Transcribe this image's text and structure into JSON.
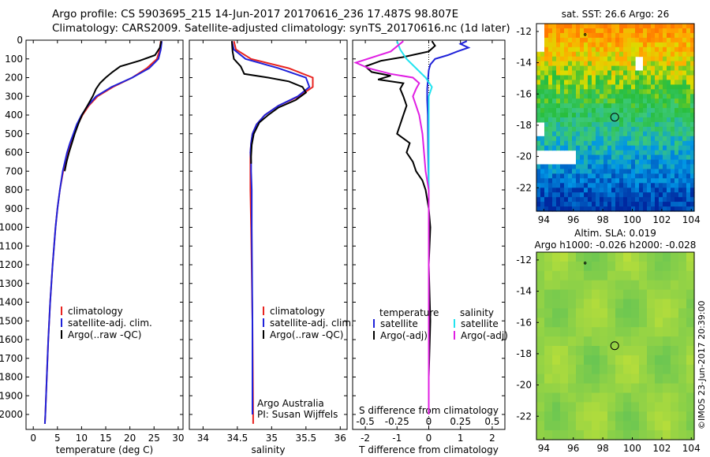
{
  "header": {
    "line1": "Argo profile: CS 5903695_215 14-Jun-2017 20170616_236 17.487S 98.807E",
    "line2": "Climatology: CARS2009. Satellite-adjusted climatology: synTS_20170616.nc (1d later)"
  },
  "side_stamp": "©IMOS 23-Jun-2017 20:39:00",
  "colors": {
    "climatology": "#e8231f",
    "satellite": "#1f22d9",
    "argo": "#000000",
    "sat_s": "#22e3ef",
    "argo_s": "#e01fe3"
  },
  "chart_data": [
    {
      "type": "line",
      "xlabel": "temperature (deg C)",
      "ylabel": "",
      "xlim": [
        -1.5,
        31
      ],
      "ylim": [
        2080,
        0
      ],
      "xticks": [
        0,
        5,
        10,
        15,
        20,
        25,
        30
      ],
      "yticks": [
        0,
        100,
        200,
        300,
        400,
        500,
        600,
        700,
        800,
        900,
        1000,
        1100,
        1200,
        1300,
        1400,
        1500,
        1600,
        1700,
        1800,
        1900,
        2000
      ],
      "legend": [
        "climatology",
        "satellite-adj. clim.",
        "Argo(..raw -QC)"
      ],
      "series": [
        {
          "name": "climatology",
          "color": "climatology",
          "depth": [
            5,
            50,
            100,
            150,
            200,
            250,
            300,
            350,
            400,
            450,
            500,
            550,
            600,
            700,
            800,
            900,
            1000,
            1200,
            1400,
            1600,
            1800,
            2000,
            2050
          ],
          "values": [
            26.4,
            26.2,
            25.6,
            23.5,
            20.5,
            16.5,
            13.3,
            11.5,
            10.2,
            9.2,
            8.5,
            7.7,
            7.1,
            6.2,
            5.5,
            5.0,
            4.6,
            4.0,
            3.5,
            3.1,
            2.8,
            2.5,
            2.4
          ]
        },
        {
          "name": "satellite-adj. clim.",
          "color": "satellite",
          "depth": [
            5,
            50,
            100,
            150,
            200,
            250,
            300,
            350,
            400,
            450,
            500,
            550,
            600,
            700,
            800,
            900,
            1000,
            1200,
            1400,
            1600,
            1800,
            2000,
            2050
          ],
          "values": [
            26.6,
            26.4,
            25.9,
            24.0,
            20.5,
            16.2,
            13.0,
            11.3,
            10.0,
            9.0,
            8.3,
            7.6,
            7.0,
            6.1,
            5.5,
            5.0,
            4.6,
            4.0,
            3.5,
            3.1,
            2.8,
            2.5,
            2.4
          ]
        },
        {
          "name": "Argo(..raw -QC)",
          "color": "argo",
          "depth": [
            5,
            40,
            80,
            110,
            140,
            170,
            200,
            230,
            260,
            300,
            350,
            400,
            450,
            500,
            550,
            600,
            650,
            700
          ],
          "values": [
            26.5,
            26.2,
            25.2,
            22.0,
            18.0,
            16.4,
            15.0,
            13.8,
            13.0,
            12.3,
            11.2,
            10.1,
            9.3,
            8.6,
            8.0,
            7.4,
            6.9,
            6.5
          ]
        }
      ]
    },
    {
      "type": "line",
      "xlabel": "salinity",
      "ylabel": "",
      "xlim": [
        33.8,
        36.1
      ],
      "ylim": [
        2080,
        0
      ],
      "xticks": [
        34,
        34.5,
        35,
        35.5,
        36
      ],
      "legend": [
        "climatology",
        "satellite-adj. clim.",
        "Argo(..raw -QC)"
      ],
      "annotations": [
        "Argo Australia",
        "PI: Susan Wijffels"
      ],
      "series": [
        {
          "name": "climatology",
          "color": "climatology",
          "depth": [
            5,
            50,
            100,
            150,
            200,
            250,
            300,
            350,
            400,
            450,
            500,
            550,
            600,
            650,
            700,
            800,
            1000,
            1500,
            2000,
            2050
          ],
          "values": [
            34.45,
            34.48,
            34.7,
            35.25,
            35.6,
            35.6,
            35.4,
            35.1,
            34.9,
            34.78,
            34.72,
            34.7,
            34.69,
            34.69,
            34.69,
            34.69,
            34.7,
            34.72,
            34.73,
            34.73
          ]
        },
        {
          "name": "satellite-adj. clim.",
          "color": "satellite",
          "depth": [
            5,
            50,
            100,
            150,
            200,
            250,
            300,
            350,
            400,
            450,
            500,
            550,
            600,
            650,
            700,
            800,
            1000,
            1500,
            2000
          ],
          "values": [
            34.42,
            34.45,
            34.62,
            35.1,
            35.5,
            35.55,
            35.38,
            35.1,
            34.9,
            34.78,
            34.72,
            34.7,
            34.69,
            34.7,
            34.7,
            34.71,
            34.71,
            34.72,
            34.72
          ]
        },
        {
          "name": "Argo(..raw -QC)",
          "color": "argo",
          "depth": [
            5,
            60,
            100,
            140,
            180,
            200,
            220,
            250,
            280,
            320,
            360,
            400,
            440,
            500,
            560,
            620,
            660
          ],
          "values": [
            34.42,
            34.43,
            34.45,
            34.55,
            34.6,
            34.95,
            35.25,
            35.45,
            35.5,
            35.35,
            35.1,
            34.95,
            34.82,
            34.74,
            34.71,
            34.7,
            34.7
          ]
        }
      ]
    },
    {
      "type": "line",
      "xlabel": "T difference from climatology",
      "title_top_axis": "S difference from climatology",
      "xlim": [
        -2.4,
        2.4
      ],
      "ylim": [
        2080,
        0
      ],
      "xticks": [
        -2,
        -1,
        0,
        1,
        2
      ],
      "top_ticks": [
        -0.5,
        -0.25,
        0,
        0.25,
        0.5
      ],
      "legend_left_title": "temperature",
      "legend_right_title": "salinity",
      "legend": [
        "satellite",
        "Argo(-adj)",
        "satellite",
        "Argo(-adj)"
      ],
      "series": [
        {
          "name": "temperature satellite",
          "color": "satellite",
          "depth": [
            5,
            20,
            40,
            60,
            80,
            100,
            130,
            160,
            200,
            260,
            320,
            400,
            600,
            800,
            1000,
            1500,
            2000
          ],
          "values": [
            1.2,
            1.0,
            1.25,
            0.9,
            0.6,
            0.2,
            0.05,
            0.0,
            -0.02,
            -0.05,
            -0.05,
            -0.03,
            -0.02,
            0.0,
            0.0,
            0.0,
            0.0
          ]
        },
        {
          "name": "temperature Argo",
          "color": "argo",
          "depth": [
            5,
            30,
            60,
            90,
            110,
            140,
            170,
            190,
            210,
            230,
            260,
            300,
            350,
            400,
            450,
            500,
            550,
            600,
            650,
            700,
            750,
            800,
            900,
            1000,
            1200,
            1500,
            1800,
            2000
          ],
          "values": [
            0.1,
            0.2,
            0.0,
            -0.8,
            -1.5,
            -2.0,
            -1.8,
            -1.2,
            -1.6,
            -0.8,
            -0.9,
            -0.8,
            -0.7,
            -0.8,
            -0.9,
            -1.0,
            -0.6,
            -0.7,
            -0.5,
            -0.4,
            -0.2,
            -0.1,
            0.0,
            0.05,
            0.0,
            0.05,
            0.0,
            0.0
          ]
        },
        {
          "name": "salinity satellite",
          "color": "sat_s",
          "depth": [
            5,
            50,
            100,
            150,
            200,
            250,
            300,
            400,
            600,
            800,
            1000,
            1500,
            2000
          ],
          "values": [
            -1.0,
            -0.9,
            -0.7,
            -0.4,
            -0.1,
            0.1,
            0.0,
            0.0,
            0.0,
            0.0,
            0.0,
            0.0,
            0.0
          ]
        },
        {
          "name": "salinity Argo",
          "color": "argo_s",
          "depth": [
            5,
            60,
            120,
            150,
            180,
            200,
            230,
            260,
            300,
            350,
            400,
            500,
            600,
            700,
            800,
            1000,
            1500,
            2000
          ],
          "values": [
            -0.8,
            -1.2,
            -2.3,
            -1.9,
            -1.2,
            -0.5,
            -0.3,
            -0.4,
            -0.5,
            -0.4,
            -0.3,
            -0.2,
            -0.15,
            -0.1,
            0.0,
            0.0,
            0.0,
            0.0
          ]
        }
      ]
    },
    {
      "type": "heatmap",
      "title": "sat. SST: 26.6  Argo: 26",
      "xlim": [
        93.5,
        104.2
      ],
      "ylim": [
        -23.5,
        -11.5
      ],
      "xticks": [
        94,
        96,
        98,
        100,
        102,
        104
      ],
      "yticks": [
        -12,
        -14,
        -16,
        -18,
        -20,
        -22
      ],
      "marker": {
        "lon": 98.807,
        "lat": -17.487
      }
    },
    {
      "type": "heatmap",
      "title": "Altim. SLA: 0.019",
      "subtitle": "Argo h1000: -0.026 h2000: -0.028",
      "xlim": [
        93.5,
        104.2
      ],
      "ylim": [
        -23.5,
        -11.5
      ],
      "xticks": [
        94,
        96,
        98,
        100,
        102,
        104
      ],
      "yticks": [
        -12,
        -14,
        -16,
        -18,
        -20,
        -22
      ],
      "marker": {
        "lon": 98.807,
        "lat": -17.487
      }
    }
  ]
}
